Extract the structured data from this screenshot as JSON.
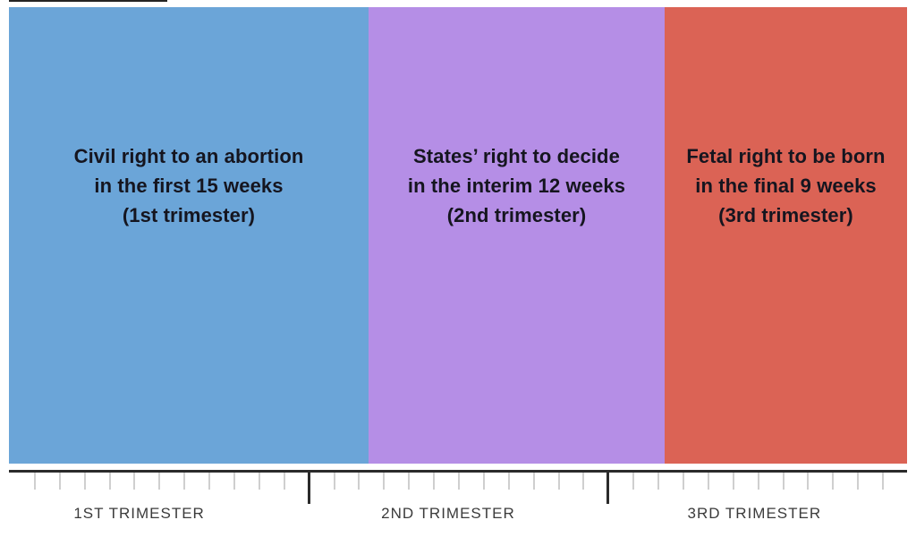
{
  "blocks": [
    {
      "id": "civil-right-first-15-weeks",
      "color": "#6BA5D8",
      "weeks": 15,
      "lines": [
        "Civil right to an abortion",
        "in the first 15 weeks",
        "(1st trimester)"
      ]
    },
    {
      "id": "states-right-interim-12-weeks",
      "color": "#B58EE6",
      "weeks": 12,
      "lines": [
        "States’ right to decide",
        "in the interim 12 weeks",
        "(2nd trimester)"
      ]
    },
    {
      "id": "fetal-right-final-9-weeks",
      "color": "#DB6355",
      "weeks": 9,
      "lines": [
        "Fetal right to be born",
        "in the final 9 weeks",
        "(3rd trimester)"
      ]
    }
  ],
  "timeline": {
    "labels": [
      "1ST TRIMESTER",
      "2ND TRIMESTER",
      "3RD TRIMESTER"
    ],
    "week_ticks": 36,
    "major_tick_weeks": [
      12,
      24
    ],
    "axis_color": "#2b2b2b",
    "minor_tick_color": "#cfcfcf",
    "label_color": "#3b3b3b"
  },
  "chart_data": {
    "type": "area",
    "title": "",
    "categories": [
      "1st trimester segment",
      "2nd trimester segment",
      "3rd trimester segment"
    ],
    "series": [
      {
        "name": "Civil right to an abortion",
        "span_weeks": [
          0,
          15
        ]
      },
      {
        "name": "States’ right to decide",
        "span_weeks": [
          15,
          27
        ]
      },
      {
        "name": "Fetal right to be born",
        "span_weeks": [
          27,
          36
        ]
      }
    ],
    "xlabel": "",
    "ylabel": "",
    "x_axis_range_weeks": [
      0,
      36
    ],
    "major_tick_positions_weeks": [
      12,
      24
    ],
    "legend_position": "none",
    "grid": false
  }
}
